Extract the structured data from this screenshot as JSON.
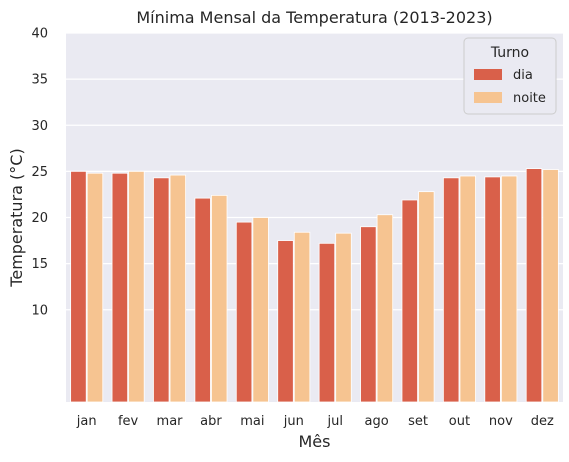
{
  "chart_data": {
    "type": "bar",
    "title": "Mínima Mensal da Temperatura (2013-2023)",
    "xlabel": "Mês",
    "ylabel": "Temperatura (°C)",
    "categories": [
      "jan",
      "fev",
      "mar",
      "abr",
      "mai",
      "jun",
      "jul",
      "ago",
      "set",
      "out",
      "nov",
      "dez"
    ],
    "series": [
      {
        "name": "dia",
        "color": "#d9604a",
        "values": [
          25.0,
          24.8,
          24.3,
          22.1,
          19.5,
          17.5,
          17.2,
          19.0,
          21.9,
          24.3,
          24.4,
          25.3
        ]
      },
      {
        "name": "noite",
        "color": "#f6c491",
        "values": [
          24.8,
          25.0,
          24.6,
          22.4,
          20.0,
          18.4,
          18.3,
          20.3,
          22.8,
          24.5,
          24.5,
          25.2
        ]
      }
    ],
    "ylim": [
      0,
      40
    ],
    "yticks": [
      10,
      15,
      20,
      25,
      30,
      35,
      40
    ],
    "grid": true,
    "legend": {
      "title": "Turno",
      "placement": "top-right"
    },
    "plot_background": "#eaeaf2"
  }
}
